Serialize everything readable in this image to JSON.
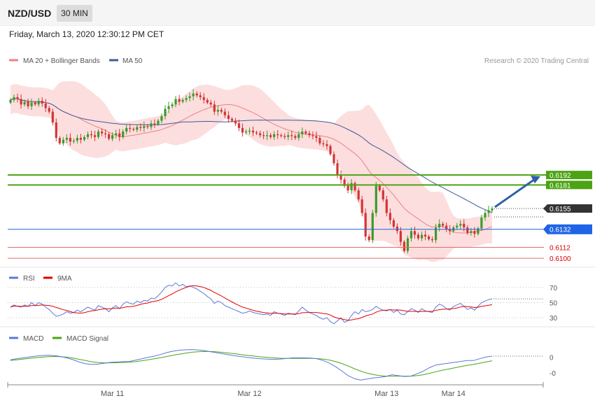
{
  "header": {
    "symbol": "NZD/USD",
    "timeframe": "30 MIN",
    "datetime": "Friday, March 13, 2020 12:30:12 PM CET"
  },
  "colors": {
    "candle_up": "#3c9a2c",
    "candle_down": "#d43434",
    "ma20": "#f08080",
    "bollinger_fill": "#fcd8d8",
    "ma50": "#3d5a9a",
    "resistance": "#4ca314",
    "support_blue": "#1f63e6",
    "support_red": "#e46a6a",
    "price_tag": "#333333",
    "rsi": "#5b78d8",
    "rsi_ma": "#e00000",
    "macd": "#5b78d8",
    "macd_signal": "#4ca314",
    "arrow": "#2f5fa8"
  },
  "chart_data": [
    {
      "type": "candlestick",
      "legend": [
        "MA 20 + Bollinger Bands",
        "MA 50"
      ],
      "legend_position": "top-left",
      "credit": "Research © 2020 Trading Central",
      "ylim": [
        0.609,
        0.6305
      ],
      "x_ticks": [
        "Mar 11",
        "Mar 12",
        "Mar 13",
        "Mar 14"
      ],
      "horizontal_levels": [
        {
          "value": 0.6192,
          "label": "0.6192",
          "style": "resistance"
        },
        {
          "value": 0.6181,
          "label": "0.6181",
          "style": "resistance"
        },
        {
          "value": 0.6155,
          "label": "0.6155",
          "style": "last_price"
        },
        {
          "value": 0.6132,
          "label": "0.6132",
          "style": "support_blue"
        },
        {
          "value": 0.6112,
          "label": "0.6112",
          "style": "support_red"
        },
        {
          "value": 0.61,
          "label": "0.6100",
          "style": "support_red"
        }
      ],
      "arrow_target": 0.6192,
      "closes": [
        0.6275,
        0.6278,
        0.6276,
        0.627,
        0.6273,
        0.6268,
        0.6272,
        0.627,
        0.6274,
        0.6271,
        0.6266,
        0.6262,
        0.625,
        0.6233,
        0.6227,
        0.6231,
        0.6233,
        0.6229,
        0.623,
        0.6233,
        0.6231,
        0.6234,
        0.6237,
        0.6236,
        0.6234,
        0.624,
        0.6238,
        0.6237,
        0.6232,
        0.6236,
        0.6238,
        0.6234,
        0.624,
        0.6244,
        0.6243,
        0.6242,
        0.6245,
        0.6244,
        0.6246,
        0.6245,
        0.6249,
        0.6248,
        0.6252,
        0.6257,
        0.6265,
        0.6268,
        0.627,
        0.6276,
        0.6273,
        0.6275,
        0.6277,
        0.6279,
        0.6282,
        0.628,
        0.6278,
        0.6275,
        0.6272,
        0.627,
        0.6262,
        0.6264,
        0.6262,
        0.6258,
        0.6254,
        0.6252,
        0.6249,
        0.6244,
        0.6239,
        0.624,
        0.6241,
        0.6239,
        0.6238,
        0.6236,
        0.6235,
        0.6236,
        0.6234,
        0.6237,
        0.6236,
        0.6235,
        0.6234,
        0.6236,
        0.6235,
        0.6233,
        0.6237,
        0.624,
        0.6238,
        0.6236,
        0.6235,
        0.6233,
        0.6227,
        0.6226,
        0.6224,
        0.6215,
        0.6205,
        0.6192,
        0.6187,
        0.618,
        0.6175,
        0.6183,
        0.6175,
        0.6165,
        0.615,
        0.6124,
        0.612,
        0.615,
        0.618,
        0.6175,
        0.6165,
        0.615,
        0.6142,
        0.6135,
        0.613,
        0.6118,
        0.6108,
        0.6122,
        0.613,
        0.6126,
        0.6122,
        0.6126,
        0.6124,
        0.6121,
        0.612,
        0.6134,
        0.6138,
        0.6136,
        0.6132,
        0.613,
        0.6134,
        0.6136,
        0.6138,
        0.6134,
        0.6128,
        0.613,
        0.6127,
        0.6133,
        0.6145,
        0.615,
        0.6153,
        0.6155
      ]
    },
    {
      "type": "line",
      "legend": [
        "RSI",
        "9MA"
      ],
      "levels": [
        70,
        50,
        30
      ],
      "level_labels": [
        "70",
        "50",
        "30"
      ],
      "ylim": [
        20,
        80
      ],
      "rsi": [
        44,
        47,
        45,
        44,
        47,
        45,
        50,
        46,
        50,
        48,
        44,
        41,
        36,
        32,
        33,
        35,
        38,
        36,
        37,
        40,
        38,
        41,
        44,
        42,
        40,
        46,
        44,
        42,
        38,
        43,
        46,
        42,
        48,
        51,
        49,
        48,
        52,
        50,
        53,
        52,
        56,
        55,
        59,
        64,
        70,
        73,
        72,
        76,
        72,
        74,
        71,
        72,
        70,
        68,
        65,
        62,
        58,
        55,
        49,
        52,
        50,
        46,
        44,
        42,
        40,
        38,
        36,
        37,
        39,
        37,
        36,
        35,
        34,
        35,
        33,
        38,
        36,
        35,
        33,
        36,
        35,
        34,
        39,
        44,
        40,
        37,
        35,
        33,
        30,
        28,
        30,
        25,
        22,
        26,
        30,
        24,
        26,
        33,
        38,
        35,
        41,
        38,
        39,
        41,
        45,
        42,
        40,
        39,
        41,
        37,
        40,
        35,
        34,
        38,
        42,
        40,
        37,
        42,
        39,
        38,
        37,
        44,
        48,
        46,
        42,
        40,
        45,
        47,
        49,
        45,
        41,
        43,
        40,
        45,
        50,
        52,
        54,
        55
      ]
    },
    {
      "type": "line",
      "legend": [
        "MACD",
        "MACD Signal"
      ],
      "zero_label": "0",
      "neg_label": "-0",
      "ylim": [
        -1.45,
        0.8
      ],
      "macd": [
        -0.15,
        -0.1,
        -0.05,
        0.0,
        0.05,
        0.08,
        0.1,
        0.08,
        0.03,
        -0.05,
        -0.15,
        -0.28,
        -0.38,
        -0.42,
        -0.4,
        -0.35,
        -0.3,
        -0.28,
        -0.26,
        -0.25,
        -0.18,
        -0.1,
        -0.02,
        0.05,
        0.14,
        0.25,
        0.33,
        0.38,
        0.41,
        0.42,
        0.4,
        0.36,
        0.3,
        0.24,
        0.18,
        0.12,
        0.06,
        0.02,
        -0.03,
        -0.07,
        -0.1,
        -0.12,
        -0.13,
        -0.12,
        -0.09,
        -0.05,
        -0.05,
        -0.05,
        -0.06,
        -0.1,
        -0.2,
        -0.35,
        -0.55,
        -0.8,
        -1.05,
        -1.22,
        -1.3,
        -1.24,
        -1.18,
        -1.15,
        -1.1,
        -1.0,
        -1.05,
        -1.1,
        -1.08,
        -0.95,
        -0.8,
        -0.6,
        -0.45,
        -0.4,
        -0.35,
        -0.3,
        -0.25,
        -0.2,
        -0.2,
        -0.1,
        0.0,
        0.05
      ],
      "signal": [
        -0.2,
        -0.16,
        -0.12,
        -0.08,
        -0.04,
        -0.01,
        0.02,
        0.03,
        0.02,
        -0.01,
        -0.06,
        -0.13,
        -0.2,
        -0.27,
        -0.31,
        -0.33,
        -0.33,
        -0.32,
        -0.31,
        -0.29,
        -0.26,
        -0.21,
        -0.16,
        -0.1,
        -0.04,
        0.03,
        0.1,
        0.16,
        0.22,
        0.27,
        0.3,
        0.32,
        0.31,
        0.29,
        0.26,
        0.22,
        0.18,
        0.13,
        0.09,
        0.05,
        0.01,
        -0.02,
        -0.05,
        -0.07,
        -0.08,
        -0.08,
        -0.08,
        -0.08,
        -0.08,
        -0.09,
        -0.12,
        -0.17,
        -0.26,
        -0.37,
        -0.51,
        -0.66,
        -0.8,
        -0.91,
        -0.99,
        -1.05,
        -1.08,
        -1.08,
        -1.08,
        -1.08,
        -1.08,
        -1.05,
        -1.0,
        -0.92,
        -0.83,
        -0.75,
        -0.68,
        -0.61,
        -0.54,
        -0.47,
        -0.42,
        -0.35,
        -0.28,
        -0.21
      ]
    }
  ]
}
